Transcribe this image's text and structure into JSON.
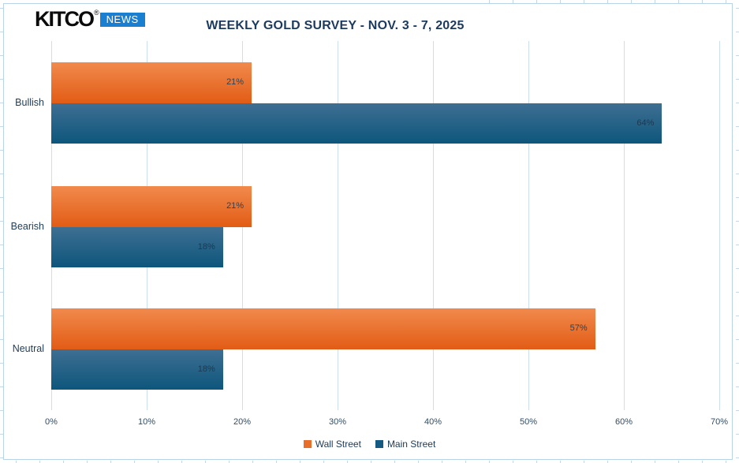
{
  "logo": {
    "brand": "KITCO",
    "registered": "®",
    "badge": "NEWS"
  },
  "title": "WEEKLY GOLD SURVEY - NOV. 3 - 7, 2025",
  "chart_data": {
    "type": "bar",
    "orientation": "horizontal",
    "title": "WEEKLY GOLD SURVEY - NOV. 3 - 7, 2025",
    "categories": [
      "Bullish",
      "Bearish",
      "Neutral"
    ],
    "series": [
      {
        "name": "Wall Street",
        "values": [
          21,
          21,
          57
        ],
        "color_top": "#f18a4d",
        "color_bottom": "#e25c15",
        "legend_color": "#e76f2b",
        "label_color": "#343f4b"
      },
      {
        "name": "Main Street",
        "values": [
          64,
          18,
          18
        ],
        "color_top": "#3e6f92",
        "color_bottom": "#0e567c",
        "legend_color": "#155a80",
        "label_color": "#1b3950"
      }
    ],
    "value_suffix": "%",
    "xlim": [
      0,
      70
    ],
    "x_ticks": [
      "0%",
      "10%",
      "20%",
      "30%",
      "40%",
      "50%",
      "60%",
      "70%"
    ],
    "grid": true,
    "legend_position": "bottom",
    "xlabel": "",
    "ylabel": ""
  },
  "colors": {
    "background": "#ffffff",
    "frame_border": "#b9d3e7",
    "gridline": "#cbdff0",
    "title_text": "#1b3a5e",
    "axis_text": "#2f4d68",
    "category_text": "#1e3c58",
    "legend_text": "#1c3a57",
    "logo_badge_bg": "#1a7fd1"
  }
}
